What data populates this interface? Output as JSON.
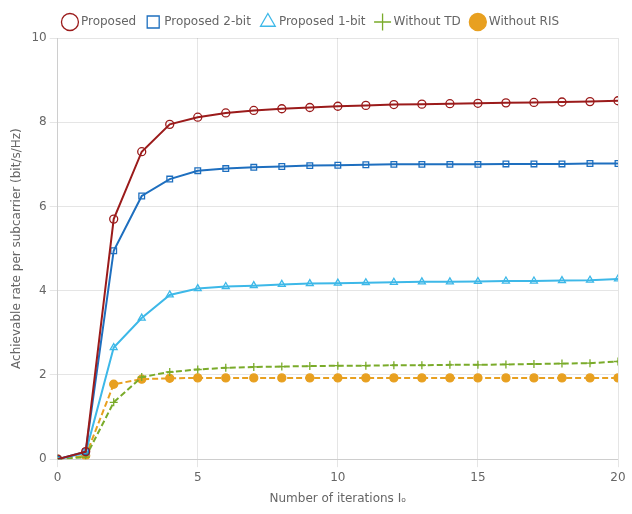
{
  "chart_data": {
    "type": "line",
    "title": "",
    "xlabel": "Number of iterations Iₒ",
    "ylabel": "Achievable rate per subcarrier (bit/s/Hz)",
    "xlim": [
      0,
      20
    ],
    "ylim": [
      0,
      10
    ],
    "xticks": [
      0,
      5,
      10,
      15,
      20
    ],
    "yticks": [
      0,
      2,
      4,
      6,
      8,
      10
    ],
    "grid": true,
    "legend": "top",
    "x": [
      0,
      1,
      2,
      3,
      4,
      5,
      6,
      7,
      8,
      9,
      10,
      11,
      12,
      13,
      14,
      15,
      16,
      17,
      18,
      19,
      20
    ],
    "series": [
      {
        "name": "Proposed",
        "color": "#9B1B1B",
        "marker": "circle",
        "line_style": "solid",
        "values": [
          0.0,
          0.18,
          5.7,
          7.3,
          7.95,
          8.12,
          8.22,
          8.28,
          8.32,
          8.35,
          8.38,
          8.4,
          8.42,
          8.43,
          8.44,
          8.45,
          8.46,
          8.47,
          8.48,
          8.49,
          8.51
        ]
      },
      {
        "name": "Proposed 2-bit",
        "color": "#1E6FBF",
        "marker": "square",
        "line_style": "solid",
        "values": [
          0.0,
          0.18,
          4.95,
          6.25,
          6.65,
          6.85,
          6.9,
          6.93,
          6.95,
          6.97,
          6.98,
          6.99,
          7.0,
          7.0,
          7.0,
          7.0,
          7.01,
          7.01,
          7.01,
          7.02,
          7.02
        ]
      },
      {
        "name": "Proposed 1-bit",
        "color": "#3DB8E8",
        "marker": "triangle",
        "line_style": "solid",
        "values": [
          0.0,
          0.15,
          2.65,
          3.35,
          3.9,
          4.05,
          4.1,
          4.12,
          4.15,
          4.17,
          4.18,
          4.19,
          4.2,
          4.21,
          4.21,
          4.22,
          4.23,
          4.23,
          4.24,
          4.25,
          4.28
        ]
      },
      {
        "name": "Without TD",
        "color": "#7AAB2A",
        "marker": "plus",
        "line_style": "dashed",
        "values": [
          0.0,
          0.05,
          1.35,
          1.95,
          2.07,
          2.13,
          2.17,
          2.19,
          2.2,
          2.21,
          2.22,
          2.22,
          2.23,
          2.23,
          2.24,
          2.24,
          2.25,
          2.26,
          2.27,
          2.28,
          2.32
        ]
      },
      {
        "name": "Without RIS",
        "color": "#E8A020",
        "marker": "dot",
        "line_style": "dashed",
        "values": [
          0.0,
          0.08,
          1.78,
          1.9,
          1.92,
          1.93,
          1.93,
          1.93,
          1.93,
          1.93,
          1.93,
          1.93,
          1.93,
          1.93,
          1.93,
          1.93,
          1.93,
          1.93,
          1.93,
          1.93,
          1.93
        ]
      }
    ]
  }
}
